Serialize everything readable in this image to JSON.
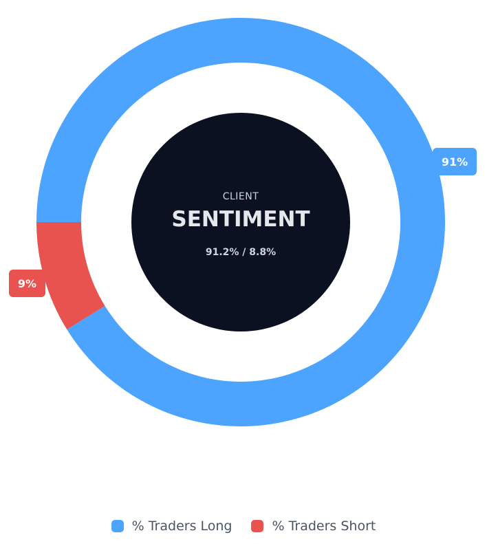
{
  "chart_data": {
    "type": "pie",
    "variant": "donut",
    "title_small": "CLIENT",
    "title_big": "SENTIMENT",
    "center_ratio": "91.2% / 8.8%",
    "series": [
      {
        "name": "% Traders Long",
        "value": 91.2,
        "label": "91%",
        "color": "#4da4ff"
      },
      {
        "name": "% Traders Short",
        "value": 8.8,
        "label": "9%",
        "color": "#e8524f"
      }
    ],
    "legend_position": "bottom-center",
    "center_color": "#0b1120"
  }
}
